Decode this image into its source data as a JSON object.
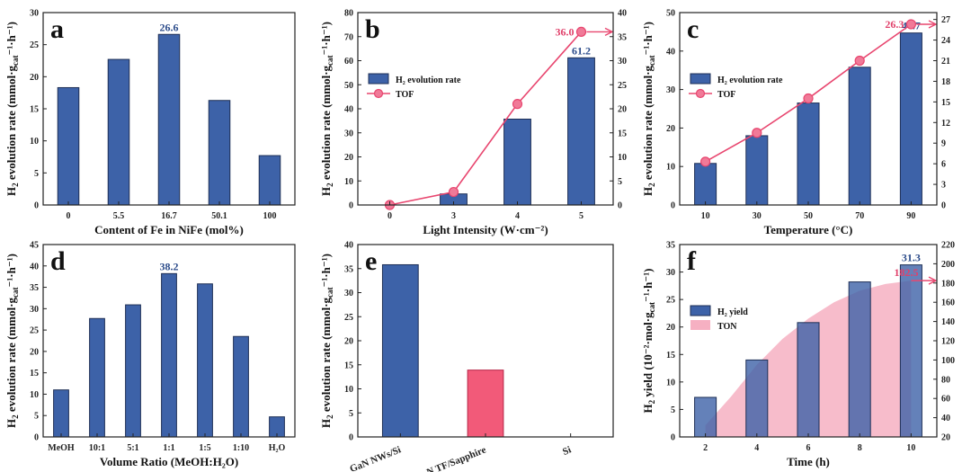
{
  "colors": {
    "bar": "#3d62a8",
    "bar_edge": "#1e2f55",
    "bar_pink": "#f25a79",
    "bar_pink_edge": "#b62748",
    "line": "#e8466f",
    "marker": "#f07a98",
    "label_blue": "#2b4b8a",
    "label_red": "#e0406a",
    "area": "#f6b0c2"
  },
  "chart_data": [
    {
      "id": "a",
      "panel_label": "a",
      "type": "bar",
      "categories": [
        "0",
        "5.5",
        "16.7",
        "50.1",
        "100"
      ],
      "values": [
        18.3,
        22.7,
        26.6,
        16.3,
        7.7
      ],
      "annotation": {
        "index": 2,
        "text": "26.6"
      },
      "xlabel": "Content of Fe in NiFe (mol%)",
      "ylabel": {
        "h2sub": "2",
        "mid": " evolution rate (mmol·g",
        "sub": "cat",
        "end": "⁻¹·h⁻¹)"
      },
      "ylim": [
        0,
        30
      ],
      "yticks": [
        0,
        5,
        10,
        15,
        20,
        25,
        30
      ]
    },
    {
      "id": "b",
      "panel_label": "b",
      "type": "bar+line",
      "categories": [
        "0",
        "3",
        "4",
        "5"
      ],
      "values": [
        0,
        4.6,
        35.7,
        61.2
      ],
      "annotation": {
        "index": 3,
        "text": "61.2"
      },
      "series": [
        {
          "name": "H₂ evolution rate",
          "kind": "bar",
          "values": [
            0,
            4.6,
            35.7,
            61.2
          ]
        },
        {
          "name": "TOF",
          "kind": "line",
          "axis": "right",
          "values": [
            0,
            2.7,
            21.0,
            36.0
          ]
        }
      ],
      "line_annotation": {
        "index": 3,
        "text": "36.0"
      },
      "xlabel": "Light Intensity (W·cm⁻²)",
      "ylabel": {
        "h2sub": "2",
        "mid": " evolution rate (mmol·g",
        "sub": "cat",
        "end": "⁻¹·h⁻¹)"
      },
      "ylim": [
        0,
        80
      ],
      "yticks": [
        0,
        10,
        20,
        30,
        40,
        50,
        60,
        70,
        80
      ],
      "y2lim": [
        0,
        40
      ],
      "y2ticks": [
        0,
        5,
        10,
        15,
        20,
        25,
        30,
        35,
        40
      ]
    },
    {
      "id": "c",
      "panel_label": "c",
      "type": "bar+line",
      "categories": [
        "10",
        "30",
        "50",
        "70",
        "90"
      ],
      "values": [
        10.8,
        18.0,
        26.5,
        35.8,
        44.7
      ],
      "annotation": {
        "index": 4,
        "text": "44.7"
      },
      "series": [
        {
          "name": "H₂ evolution rate",
          "kind": "bar",
          "values": [
            10.8,
            18.0,
            26.5,
            35.8,
            44.7
          ]
        },
        {
          "name": "TOF",
          "kind": "line",
          "axis": "right",
          "values": [
            6.3,
            10.5,
            15.5,
            21.0,
            26.3
          ]
        }
      ],
      "line_annotation": {
        "index": 4,
        "text": "26.3"
      },
      "xlabel": "Temperature (°C)",
      "ylabel": {
        "h2sub": "2",
        "mid": " evolution rate (mmol·g",
        "sub": "cat",
        "end": "⁻¹·h⁻¹)"
      },
      "ylim": [
        0,
        50
      ],
      "yticks": [
        0,
        10,
        20,
        30,
        40,
        50
      ],
      "y2lim": [
        0,
        28
      ],
      "y2ticks": [
        0,
        3,
        6,
        9,
        12,
        15,
        18,
        21,
        24,
        27
      ]
    },
    {
      "id": "d",
      "panel_label": "d",
      "type": "bar",
      "categories": [
        "MeOH",
        "10:1",
        "5:1",
        "1:1",
        "1:5",
        "1:10",
        "H₂O"
      ],
      "values": [
        11.0,
        27.7,
        30.9,
        38.2,
        35.8,
        23.5,
        4.7
      ],
      "annotation": {
        "index": 3,
        "text": "38.2"
      },
      "xlabel": "Volume Ratio (MeOH:H₂O)",
      "ylabel": {
        "h2sub": "2",
        "mid": " evolution rate (mmol·g",
        "sub": "cat",
        "end": "⁻¹·h⁻¹)"
      },
      "ylim": [
        0,
        45
      ],
      "yticks": [
        0,
        5,
        10,
        15,
        20,
        25,
        30,
        35,
        40,
        45
      ]
    },
    {
      "id": "e",
      "panel_label": "e",
      "type": "bar",
      "categories": [
        "GaN NWs/Si",
        "GaN TF/Sapphire",
        "Si"
      ],
      "values": [
        35.8,
        13.9,
        0
      ],
      "bar_colors": [
        "bar",
        "bar_pink",
        "bar"
      ],
      "xlabel": "",
      "ylabel": {
        "h2sub": "2",
        "mid": " evolution rate (mmol·g",
        "sub": "cat",
        "end": "⁻¹·h⁻¹)"
      },
      "ylim": [
        0,
        40
      ],
      "yticks": [
        0,
        5,
        10,
        15,
        20,
        25,
        30,
        35,
        40
      ]
    },
    {
      "id": "f",
      "panel_label": "f",
      "type": "bar+area",
      "categories": [
        "2",
        "4",
        "6",
        "8",
        "10"
      ],
      "values": [
        7.2,
        14.0,
        20.8,
        28.2,
        31.3
      ],
      "annotation": {
        "index": 4,
        "text": "31.3"
      },
      "series": [
        {
          "name": "H₂ yield",
          "kind": "bar",
          "values": [
            7.2,
            14.0,
            20.8,
            28.2,
            31.3
          ]
        },
        {
          "name": "TON",
          "kind": "area",
          "axis": "right",
          "x": [
            2,
            3,
            4,
            5,
            6,
            7,
            8,
            9,
            10
          ],
          "values": [
            32,
            62,
            95,
            122,
            143,
            160,
            172,
            179,
            182.5
          ]
        }
      ],
      "area_annotation": {
        "text": "182.5"
      },
      "xlabel": "Time (h)",
      "ylabel": {
        "h2sub": "2",
        "mid": " yield (10⁻²·mol·g",
        "sub": "cat",
        "end": "⁻¹·h⁻¹)"
      },
      "ylim": [
        0,
        35
      ],
      "yticks": [
        0,
        5,
        10,
        15,
        20,
        25,
        30,
        35
      ],
      "y2lim": [
        20,
        220
      ],
      "y2ticks": [
        20,
        40,
        60,
        80,
        100,
        120,
        140,
        160,
        180,
        200,
        220
      ]
    }
  ]
}
